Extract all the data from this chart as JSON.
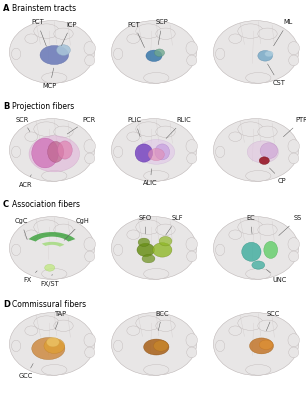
{
  "bg_color": "#ffffff",
  "sections": [
    {
      "label": "A",
      "name": "Brainstem tracts"
    },
    {
      "label": "B",
      "name": "Projection fibers"
    },
    {
      "label": "C",
      "name": "Association fibers"
    },
    {
      "label": "D",
      "name": "Commissural fibers"
    }
  ],
  "label_fs": 4.8,
  "header_fs": 5.5,
  "brain_base": "#e8e6e6",
  "brain_gyri": "#d8d4d4",
  "brain_edge": "#b8b0b0",
  "gyri_edge": "#c8c0c0"
}
